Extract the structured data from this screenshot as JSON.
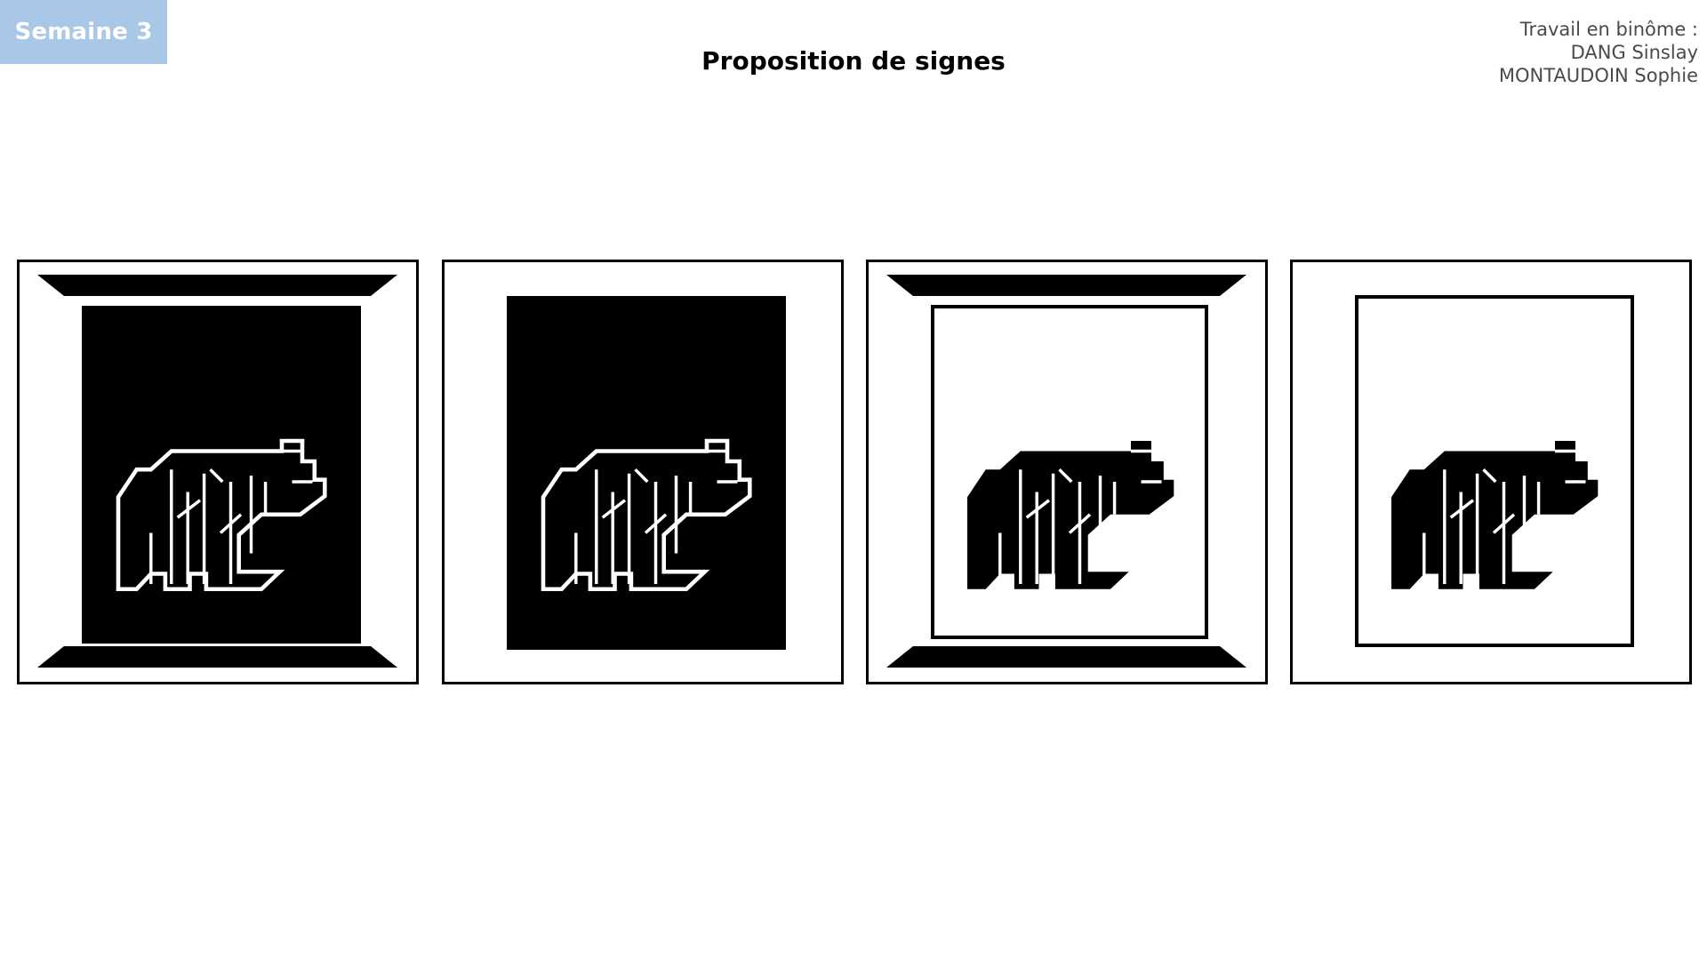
{
  "header": {
    "week_label": "Semaine 3",
    "title": "Proposition de signes",
    "authors_heading": "Travail en binôme :",
    "author_1": "DANG Sinslay",
    "author_2": "MONTAUDOIN Sophie"
  },
  "colors": {
    "badge_background": "#a9c8e8",
    "badge_text": "#ffffff",
    "ink": "#000000",
    "paper": "#ffffff",
    "authors_text": "#4a4a4a"
  },
  "proposals": [
    {
      "variant": "trapezoid-bars, black field, outlined sign"
    },
    {
      "variant": "black field, outlined sign"
    },
    {
      "variant": "trapezoid-bars, white field with frame, solid sign"
    },
    {
      "variant": "white field with frame, solid sign"
    }
  ]
}
